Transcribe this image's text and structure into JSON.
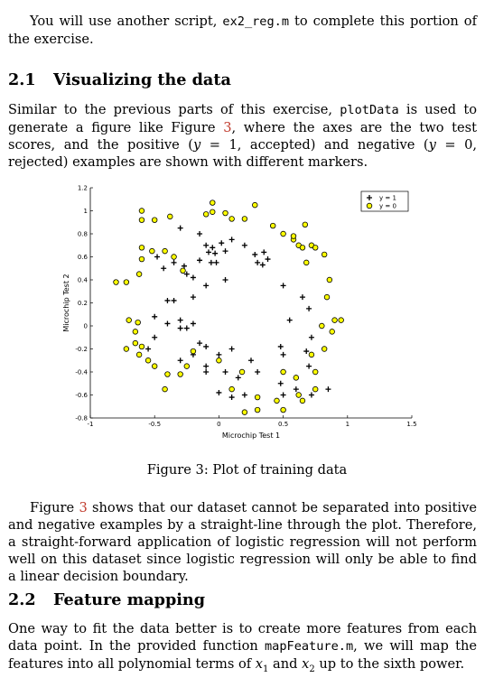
{
  "intro": {
    "lead": "You will use another script, ",
    "script": "ex2_reg.m",
    "tail": " to complete this portion of the exercise."
  },
  "section1": {
    "number": "2.1",
    "title": "Visualizing the data",
    "p1": "Similar to the previous parts of this exercise, ",
    "code": "plotData",
    "p2": " is used to generate a figure like Figure ",
    "figref": "3",
    "p3": ", where the axes are the two test scores, and the positive (",
    "math1": "y",
    "p4": " = 1, accepted) and negative (",
    "math2": "y",
    "p5": " = 0, rejected) examples are shown with different markers."
  },
  "figure": {
    "caption": "Figure 3: Plot of training data"
  },
  "para2": {
    "a": "Figure ",
    "figref": "3",
    "b": " shows that our dataset cannot be separated into positive and negative examples by a straight-line through the plot. Therefore, a straight-forward application of logistic regression will not perform well on this dataset since logistic regression will only be able to find a linear decision boundary."
  },
  "section2": {
    "number": "2.2",
    "title": "Feature mapping",
    "p1": "One way to fit the data better is to create more features from each data point. In the provided function ",
    "code": "mapFeature.m",
    "p2": ", we will map the features into all polynomial terms of ",
    "x1": "x",
    "sub1": "1",
    "p3": " and ",
    "x2": "x",
    "sub2": "2",
    "p4": " up to the sixth power."
  },
  "chart_data": {
    "type": "scatter",
    "xlabel": "Microchip Test 1",
    "ylabel": "Microchip Test 2",
    "xlim": [
      -1,
      1.5
    ],
    "ylim": [
      -0.8,
      1.2
    ],
    "xticks": [
      "-1",
      "-0.5",
      "0",
      "0.5",
      "1",
      "1.5"
    ],
    "yticks": [
      "-0.8",
      "-0.6",
      "-0.4",
      "-0.2",
      "0",
      "0.2",
      "0.4",
      "0.6",
      "0.8",
      "1",
      "1.2"
    ],
    "legend_position": "top-right",
    "grid": false,
    "series": [
      {
        "name": "y = 1",
        "marker": "plus",
        "color": "#000000",
        "points": [
          [
            -0.15,
            0.8
          ],
          [
            -0.3,
            0.85
          ],
          [
            -0.1,
            0.7
          ],
          [
            -0.05,
            0.68
          ],
          [
            -0.08,
            0.64
          ],
          [
            -0.03,
            0.63
          ],
          [
            0.02,
            0.72
          ],
          [
            0.1,
            0.75
          ],
          [
            0.05,
            0.65
          ],
          [
            0.2,
            0.7
          ],
          [
            0.28,
            0.62
          ],
          [
            0.35,
            0.64
          ],
          [
            0.38,
            0.58
          ],
          [
            0.3,
            0.55
          ],
          [
            0.34,
            0.53
          ],
          [
            -0.02,
            0.55
          ],
          [
            -0.06,
            0.55
          ],
          [
            -0.15,
            0.57
          ],
          [
            -0.25,
            0.45
          ],
          [
            -0.2,
            0.42
          ],
          [
            -0.35,
            0.55
          ],
          [
            -0.48,
            0.6
          ],
          [
            -0.43,
            0.5
          ],
          [
            -0.27,
            0.52
          ],
          [
            0.05,
            0.4
          ],
          [
            -0.1,
            0.35
          ],
          [
            -0.2,
            0.25
          ],
          [
            -0.35,
            0.22
          ],
          [
            -0.4,
            0.22
          ],
          [
            -0.3,
            0.05
          ],
          [
            -0.4,
            0.02
          ],
          [
            -0.5,
            0.08
          ],
          [
            -0.2,
            0.02
          ],
          [
            -0.3,
            -0.02
          ],
          [
            -0.25,
            -0.02
          ],
          [
            -0.15,
            -0.15
          ],
          [
            -0.1,
            -0.18
          ],
          [
            -0.2,
            -0.25
          ],
          [
            -0.55,
            -0.2
          ],
          [
            -0.5,
            -0.1
          ],
          [
            -0.3,
            -0.3
          ],
          [
            -0.1,
            -0.35
          ],
          [
            -0.1,
            -0.4
          ],
          [
            0.0,
            -0.25
          ],
          [
            0.1,
            -0.2
          ],
          [
            0.05,
            -0.4
          ],
          [
            0.15,
            -0.45
          ],
          [
            0.3,
            -0.4
          ],
          [
            0.25,
            -0.3
          ],
          [
            0.5,
            -0.25
          ],
          [
            0.48,
            -0.18
          ],
          [
            0.55,
            0.05
          ],
          [
            0.5,
            0.35
          ],
          [
            0.65,
            0.25
          ],
          [
            0.7,
            0.15
          ],
          [
            0.72,
            -0.1
          ],
          [
            0.7,
            -0.35
          ],
          [
            0.72,
            -0.6
          ],
          [
            0.6,
            -0.55
          ],
          [
            0.5,
            -0.6
          ],
          [
            0.48,
            -0.5
          ],
          [
            0.6,
            -0.45
          ],
          [
            0.68,
            -0.22
          ],
          [
            0.85,
            -0.55
          ],
          [
            0.2,
            -0.6
          ],
          [
            0.1,
            -0.62
          ],
          [
            0.0,
            -0.58
          ]
        ]
      },
      {
        "name": "y = 0",
        "marker": "circle",
        "color": "#ffff00",
        "points": [
          [
            -0.05,
            1.07
          ],
          [
            -0.6,
            1.0
          ],
          [
            -0.6,
            0.92
          ],
          [
            -0.5,
            0.92
          ],
          [
            -0.38,
            0.95
          ],
          [
            -0.1,
            0.97
          ],
          [
            -0.05,
            0.99
          ],
          [
            0.05,
            0.98
          ],
          [
            0.1,
            0.93
          ],
          [
            0.2,
            0.93
          ],
          [
            0.28,
            1.05
          ],
          [
            0.42,
            0.87
          ],
          [
            0.5,
            0.8
          ],
          [
            0.58,
            0.75
          ],
          [
            0.62,
            0.7
          ],
          [
            0.65,
            0.68
          ],
          [
            0.72,
            0.7
          ],
          [
            0.67,
            0.88
          ],
          [
            0.58,
            0.78
          ],
          [
            0.68,
            0.55
          ],
          [
            0.75,
            0.68
          ],
          [
            0.82,
            0.62
          ],
          [
            0.86,
            0.4
          ],
          [
            0.84,
            0.25
          ],
          [
            0.9,
            0.05
          ],
          [
            0.95,
            0.05
          ],
          [
            0.88,
            -0.05
          ],
          [
            0.8,
            0.0
          ],
          [
            0.82,
            -0.2
          ],
          [
            0.75,
            -0.4
          ],
          [
            0.75,
            -0.55
          ],
          [
            0.65,
            -0.65
          ],
          [
            0.5,
            -0.73
          ],
          [
            0.3,
            -0.73
          ],
          [
            0.2,
            -0.75
          ],
          [
            0.1,
            -0.55
          ],
          [
            0.0,
            -0.3
          ],
          [
            -0.2,
            -0.22
          ],
          [
            -0.3,
            -0.42
          ],
          [
            -0.4,
            -0.42
          ],
          [
            -0.42,
            -0.55
          ],
          [
            -0.5,
            -0.35
          ],
          [
            -0.55,
            -0.3
          ],
          [
            -0.62,
            -0.25
          ],
          [
            -0.6,
            -0.18
          ],
          [
            -0.65,
            -0.15
          ],
          [
            -0.72,
            -0.2
          ],
          [
            -0.65,
            -0.05
          ],
          [
            -0.63,
            0.03
          ],
          [
            -0.7,
            0.05
          ],
          [
            -0.8,
            0.38
          ],
          [
            -0.72,
            0.38
          ],
          [
            -0.62,
            0.45
          ],
          [
            -0.6,
            0.58
          ],
          [
            -0.6,
            0.68
          ],
          [
            -0.52,
            0.65
          ],
          [
            -0.42,
            0.65
          ],
          [
            -0.35,
            0.6
          ],
          [
            -0.28,
            0.48
          ],
          [
            0.6,
            -0.45
          ],
          [
            0.5,
            -0.4
          ],
          [
            0.72,
            -0.25
          ],
          [
            -0.25,
            -0.35
          ],
          [
            0.18,
            -0.4
          ],
          [
            0.45,
            -0.65
          ],
          [
            0.62,
            -0.6
          ],
          [
            0.3,
            -0.62
          ]
        ]
      }
    ]
  }
}
